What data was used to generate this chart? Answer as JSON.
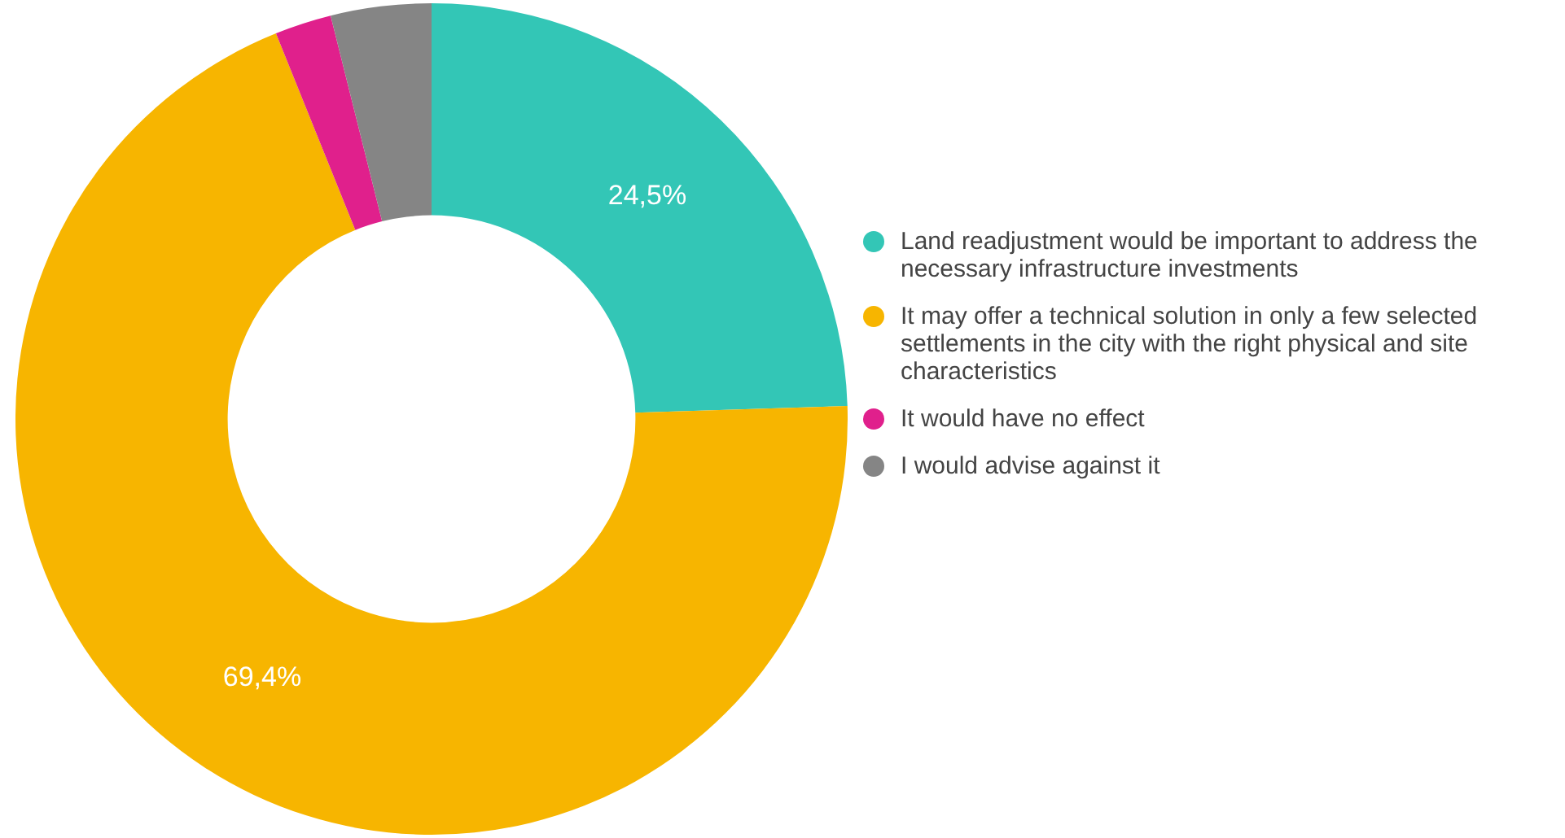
{
  "chart_data": {
    "type": "donut",
    "categories": [
      "Land readjustment would be important to address the necessary infrastructure investments",
      "It may offer a technical solution in only a few selected settlements in the city with the right physical and site characteristics",
      "It would have no effect",
      "I would advise against it"
    ],
    "values": [
      24.5,
      69.4,
      2.2,
      3.9
    ],
    "colors": [
      "#33c6b6",
      "#f7b500",
      "#e0208c",
      "#858585"
    ],
    "value_labels": [
      "24,5%",
      "69,4%",
      null,
      null
    ],
    "legend": "right"
  }
}
